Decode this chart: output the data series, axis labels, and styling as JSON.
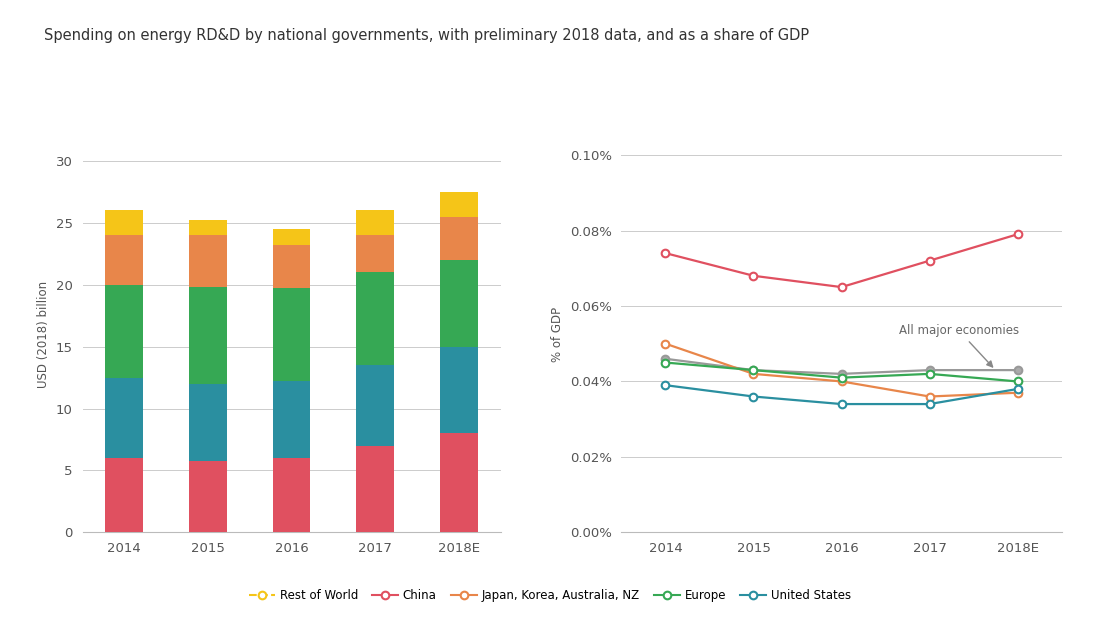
{
  "title": "Spending on energy RD&D by national governments, with preliminary 2018 data, and as a share of GDP",
  "bar_years": [
    "2014",
    "2015",
    "2016",
    "2017",
    "2018E"
  ],
  "bar_data": {
    "China": [
      6.0,
      5.8,
      6.0,
      7.0,
      8.0
    ],
    "United States": [
      6.5,
      6.2,
      6.2,
      6.5,
      7.0
    ],
    "Europe": [
      7.5,
      7.8,
      7.5,
      7.5,
      7.0
    ],
    "Japan_Korea": [
      4.0,
      4.2,
      3.5,
      3.0,
      3.5
    ],
    "Rest_of_World": [
      2.0,
      1.2,
      1.3,
      2.0,
      2.0
    ]
  },
  "bar_colors": {
    "China": "#e05060",
    "United States": "#2a8fa0",
    "Europe": "#36a854",
    "Japan_Korea": "#e8864a",
    "Rest_of_World": "#f5c518"
  },
  "bar_ylabel": "USD (2018) billion",
  "bar_ylim": [
    0,
    32
  ],
  "bar_yticks": [
    0,
    5,
    10,
    15,
    20,
    25,
    30
  ],
  "line_years": [
    "2014",
    "2015",
    "2016",
    "2017",
    "2018E"
  ],
  "line_data": {
    "China": [
      0.00074,
      0.00068,
      0.00065,
      0.00072,
      0.00079
    ],
    "Japan_Korea": [
      0.0005,
      0.00042,
      0.0004,
      0.00036,
      0.00037
    ],
    "Europe": [
      0.00045,
      0.00043,
      0.00041,
      0.00042,
      0.0004
    ],
    "United States": [
      0.00039,
      0.00036,
      0.00034,
      0.00034,
      0.00038
    ],
    "All_major": [
      0.00046,
      0.00043,
      0.00042,
      0.00043,
      0.00043
    ]
  },
  "line_colors": {
    "China": "#e05060",
    "Japan_Korea": "#e8864a",
    "Europe": "#36a854",
    "United States": "#2a8fa0",
    "All_major": "#999999"
  },
  "line_ylabel": "% of GDP",
  "line_ylim": [
    0.0,
    0.00105
  ],
  "line_yticks": [
    0.0,
    0.0002,
    0.0004,
    0.0006,
    0.0008,
    0.001
  ],
  "legend_labels": {
    "Rest_of_World": "Rest of World",
    "China": "China",
    "Japan_Korea": "Japan, Korea, Australia, NZ",
    "Europe": "Europe",
    "United States": "United States"
  },
  "background_color": "#ffffff"
}
